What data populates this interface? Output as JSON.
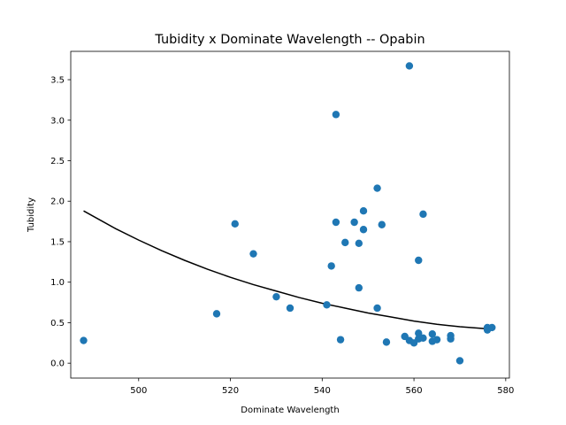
{
  "chart_data": {
    "type": "scatter",
    "title": "Tubidity x Dominate Wavelength -- Opabin",
    "xlabel": "Dominate Wavelength",
    "ylabel": "Tubidity",
    "xlim": [
      485.2,
      580.8
    ],
    "ylim": [
      -0.184,
      3.85
    ],
    "xticks": [
      500,
      520,
      540,
      560,
      580
    ],
    "yticks": [
      0.0,
      0.5,
      1.0,
      1.5,
      2.0,
      2.5,
      3.0,
      3.5
    ],
    "xtick_labels": [
      "500",
      "520",
      "540",
      "560",
      "580"
    ],
    "ytick_labels": [
      "0.0",
      "0.5",
      "1.0",
      "1.5",
      "2.0",
      "2.5",
      "3.0",
      "3.5"
    ],
    "grid": false,
    "legend": "none",
    "series": [
      {
        "kind": "scatter",
        "color": "#1f77b4",
        "points": [
          {
            "x": 488,
            "y": 0.28
          },
          {
            "x": 517,
            "y": 0.61
          },
          {
            "x": 521,
            "y": 1.72
          },
          {
            "x": 525,
            "y": 1.35
          },
          {
            "x": 530,
            "y": 0.82
          },
          {
            "x": 533,
            "y": 0.68
          },
          {
            "x": 541,
            "y": 0.72
          },
          {
            "x": 542,
            "y": 1.2
          },
          {
            "x": 543,
            "y": 3.07
          },
          {
            "x": 543,
            "y": 1.74
          },
          {
            "x": 544,
            "y": 0.29
          },
          {
            "x": 545,
            "y": 1.49
          },
          {
            "x": 547,
            "y": 1.74
          },
          {
            "x": 548,
            "y": 1.48
          },
          {
            "x": 548,
            "y": 0.93
          },
          {
            "x": 549,
            "y": 1.88
          },
          {
            "x": 549,
            "y": 1.65
          },
          {
            "x": 552,
            "y": 2.16
          },
          {
            "x": 552,
            "y": 0.68
          },
          {
            "x": 553,
            "y": 1.71
          },
          {
            "x": 554,
            "y": 0.26
          },
          {
            "x": 558,
            "y": 0.33
          },
          {
            "x": 559,
            "y": 3.67
          },
          {
            "x": 559,
            "y": 0.28
          },
          {
            "x": 560,
            "y": 0.25
          },
          {
            "x": 561,
            "y": 1.27
          },
          {
            "x": 561,
            "y": 0.37
          },
          {
            "x": 561,
            "y": 0.3
          },
          {
            "x": 562,
            "y": 1.84
          },
          {
            "x": 562,
            "y": 0.31
          },
          {
            "x": 564,
            "y": 0.36
          },
          {
            "x": 564,
            "y": 0.27
          },
          {
            "x": 565,
            "y": 0.29
          },
          {
            "x": 568,
            "y": 0.34
          },
          {
            "x": 568,
            "y": 0.3
          },
          {
            "x": 570,
            "y": 0.03
          },
          {
            "x": 576,
            "y": 0.44
          },
          {
            "x": 576,
            "y": 0.41
          },
          {
            "x": 577,
            "y": 0.44
          }
        ]
      },
      {
        "kind": "line",
        "color": "#000000",
        "points": [
          {
            "x": 488,
            "y": 1.88
          },
          {
            "x": 495,
            "y": 1.66
          },
          {
            "x": 500,
            "y": 1.52
          },
          {
            "x": 505,
            "y": 1.39
          },
          {
            "x": 510,
            "y": 1.27
          },
          {
            "x": 515,
            "y": 1.16
          },
          {
            "x": 520,
            "y": 1.06
          },
          {
            "x": 525,
            "y": 0.97
          },
          {
            "x": 530,
            "y": 0.89
          },
          {
            "x": 535,
            "y": 0.81
          },
          {
            "x": 540,
            "y": 0.74
          },
          {
            "x": 545,
            "y": 0.68
          },
          {
            "x": 550,
            "y": 0.62
          },
          {
            "x": 555,
            "y": 0.57
          },
          {
            "x": 560,
            "y": 0.52
          },
          {
            "x": 565,
            "y": 0.48
          },
          {
            "x": 570,
            "y": 0.45
          },
          {
            "x": 577,
            "y": 0.42
          }
        ]
      }
    ]
  }
}
